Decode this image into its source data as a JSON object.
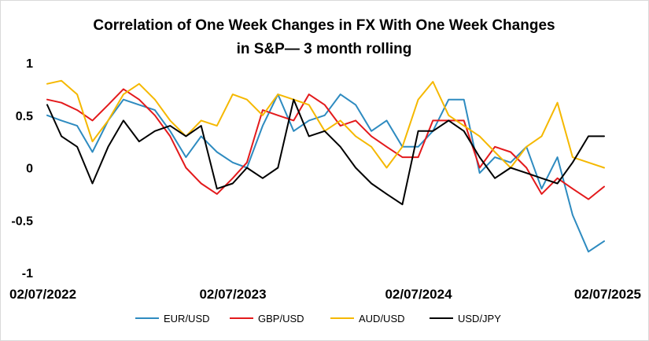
{
  "chart_data": {
    "type": "line",
    "title": "Correlation of One Week Changes in FX With One Week Changes",
    "subtitle": "in S&P— 3 month rolling",
    "ylim": [
      -1,
      1
    ],
    "y_ticks": [
      "1",
      "0.5",
      "0",
      "-0.5",
      "-1"
    ],
    "x_range": [
      "2022-02-07",
      "2025-02-07"
    ],
    "x_ticks": [
      "02/07/2022",
      "02/07/2023",
      "02/07/2024",
      "02/07/2025"
    ],
    "grid": false,
    "legend_position": "bottom",
    "series": [
      {
        "name": "EUR/USD",
        "color": "#2e8bc0",
        "x": [
          "2022-02-07",
          "2022-03-07",
          "2022-04-07",
          "2022-05-07",
          "2022-06-07",
          "2022-07-07",
          "2022-08-07",
          "2022-09-07",
          "2022-10-07",
          "2022-11-07",
          "2022-12-07",
          "2023-01-07",
          "2023-02-07",
          "2023-03-07",
          "2023-04-07",
          "2023-05-07",
          "2023-06-07",
          "2023-07-07",
          "2023-08-07",
          "2023-09-07",
          "2023-10-07",
          "2023-11-07",
          "2023-12-07",
          "2024-01-07",
          "2024-02-07",
          "2024-03-07",
          "2024-04-07",
          "2024-05-07",
          "2024-06-07",
          "2024-07-07",
          "2024-08-07",
          "2024-09-07",
          "2024-10-07",
          "2024-11-07",
          "2024-12-07",
          "2025-01-07",
          "2025-02-07"
        ],
        "values": [
          0.5,
          0.45,
          0.4,
          0.15,
          0.45,
          0.65,
          0.6,
          0.55,
          0.35,
          0.1,
          0.3,
          0.15,
          0.05,
          0.0,
          0.4,
          0.7,
          0.35,
          0.45,
          0.5,
          0.7,
          0.6,
          0.35,
          0.45,
          0.2,
          0.2,
          0.35,
          0.65,
          0.65,
          -0.05,
          0.1,
          0.05,
          0.2,
          -0.2,
          0.1,
          -0.45,
          -0.8,
          -0.7
        ]
      },
      {
        "name": "GBP/USD",
        "color": "#e31a1c",
        "x": [
          "2022-02-07",
          "2022-03-07",
          "2022-04-07",
          "2022-05-07",
          "2022-06-07",
          "2022-07-07",
          "2022-08-07",
          "2022-09-07",
          "2022-10-07",
          "2022-11-07",
          "2022-12-07",
          "2023-01-07",
          "2023-02-07",
          "2023-03-07",
          "2023-04-07",
          "2023-05-07",
          "2023-06-07",
          "2023-07-07",
          "2023-08-07",
          "2023-09-07",
          "2023-10-07",
          "2023-11-07",
          "2023-12-07",
          "2024-01-07",
          "2024-02-07",
          "2024-03-07",
          "2024-04-07",
          "2024-05-07",
          "2024-06-07",
          "2024-07-07",
          "2024-08-07",
          "2024-09-07",
          "2024-10-07",
          "2024-11-07",
          "2024-12-07",
          "2025-01-07",
          "2025-02-07"
        ],
        "values": [
          0.65,
          0.62,
          0.55,
          0.45,
          0.6,
          0.75,
          0.65,
          0.5,
          0.3,
          0.0,
          -0.15,
          -0.25,
          -0.1,
          0.05,
          0.55,
          0.5,
          0.45,
          0.7,
          0.6,
          0.4,
          0.45,
          0.3,
          0.2,
          0.1,
          0.1,
          0.45,
          0.45,
          0.45,
          0.0,
          0.2,
          0.15,
          0.0,
          -0.25,
          -0.1,
          -0.2,
          -0.3,
          -0.18
        ]
      },
      {
        "name": "AUD/USD",
        "color": "#f5b800",
        "x": [
          "2022-02-07",
          "2022-03-07",
          "2022-04-07",
          "2022-05-07",
          "2022-06-07",
          "2022-07-07",
          "2022-08-07",
          "2022-09-07",
          "2022-10-07",
          "2022-11-07",
          "2022-12-07",
          "2023-01-07",
          "2023-02-07",
          "2023-03-07",
          "2023-04-07",
          "2023-05-07",
          "2023-06-07",
          "2023-07-07",
          "2023-08-07",
          "2023-09-07",
          "2023-10-07",
          "2023-11-07",
          "2023-12-07",
          "2024-01-07",
          "2024-02-07",
          "2024-03-07",
          "2024-04-07",
          "2024-05-07",
          "2024-06-07",
          "2024-07-07",
          "2024-08-07",
          "2024-09-07",
          "2024-10-07",
          "2024-11-07",
          "2024-12-07",
          "2025-01-07",
          "2025-02-07"
        ],
        "values": [
          0.8,
          0.83,
          0.7,
          0.25,
          0.45,
          0.7,
          0.8,
          0.65,
          0.45,
          0.3,
          0.45,
          0.4,
          0.7,
          0.65,
          0.5,
          0.7,
          0.65,
          0.6,
          0.35,
          0.45,
          0.3,
          0.2,
          0.0,
          0.2,
          0.65,
          0.82,
          0.5,
          0.4,
          0.3,
          0.15,
          0.0,
          0.2,
          0.3,
          0.62,
          0.1,
          0.05,
          0.0
        ]
      },
      {
        "name": "USD/JPY",
        "color": "#000000",
        "x": [
          "2022-02-07",
          "2022-03-07",
          "2022-04-07",
          "2022-05-07",
          "2022-06-07",
          "2022-07-07",
          "2022-08-07",
          "2022-09-07",
          "2022-10-07",
          "2022-11-07",
          "2022-12-07",
          "2023-01-07",
          "2023-02-07",
          "2023-03-07",
          "2023-04-07",
          "2023-05-07",
          "2023-06-07",
          "2023-07-07",
          "2023-08-07",
          "2023-09-07",
          "2023-10-07",
          "2023-11-07",
          "2023-12-07",
          "2024-01-07",
          "2024-02-07",
          "2024-03-07",
          "2024-04-07",
          "2024-05-07",
          "2024-06-07",
          "2024-07-07",
          "2024-08-07",
          "2024-09-07",
          "2024-10-07",
          "2024-11-07",
          "2024-12-07",
          "2025-01-07",
          "2025-02-07"
        ],
        "values": [
          0.6,
          0.3,
          0.2,
          -0.15,
          0.2,
          0.45,
          0.25,
          0.35,
          0.4,
          0.3,
          0.4,
          -0.2,
          -0.15,
          0.0,
          -0.1,
          0.0,
          0.65,
          0.3,
          0.35,
          0.2,
          0.0,
          -0.15,
          -0.25,
          -0.35,
          0.35,
          0.35,
          0.45,
          0.35,
          0.1,
          -0.1,
          0.0,
          -0.05,
          -0.1,
          -0.15,
          0.05,
          0.3,
          0.3
        ]
      }
    ]
  }
}
